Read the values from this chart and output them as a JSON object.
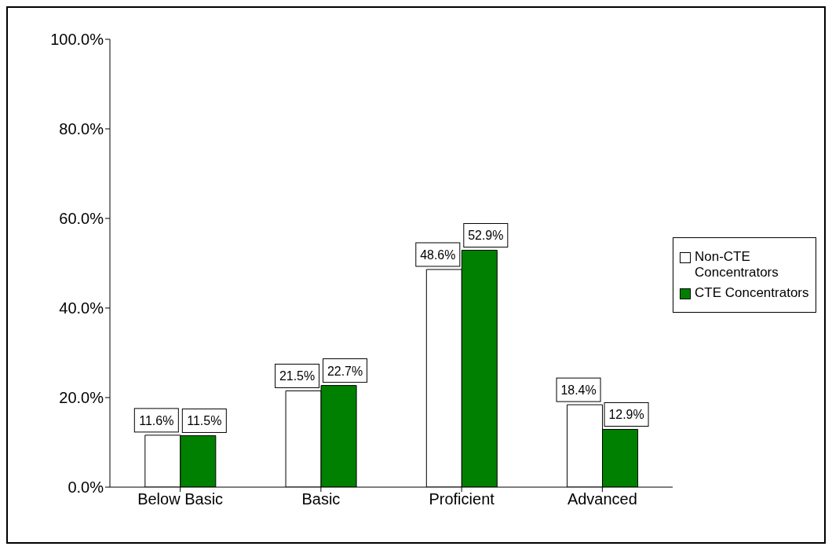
{
  "chart_data": {
    "type": "bar",
    "categories": [
      "Below Basic",
      "Basic",
      "Proficient",
      "Advanced"
    ],
    "series": [
      {
        "name": "Non-CTE Concentrators",
        "color": "#ffffff",
        "values": [
          11.6,
          21.5,
          48.6,
          18.4
        ],
        "value_labels": [
          "11.6%",
          "21.5%",
          "48.6%",
          "18.4%"
        ]
      },
      {
        "name": "CTE Concentrators",
        "color": "#008000",
        "values": [
          11.5,
          22.7,
          52.9,
          12.9
        ],
        "value_labels": [
          "11.5%",
          "22.7%",
          "52.9%",
          "12.9%"
        ]
      }
    ],
    "ylim": [
      0,
      100
    ],
    "yticks": [
      {
        "value": 0,
        "label": "0.0%"
      },
      {
        "value": 20,
        "label": "20.0%"
      },
      {
        "value": 40,
        "label": "40.0%"
      },
      {
        "value": 60,
        "label": "60.0%"
      },
      {
        "value": 80,
        "label": "80.0%"
      },
      {
        "value": 100,
        "label": "100.0%"
      }
    ],
    "grid": false,
    "legend": "right"
  }
}
